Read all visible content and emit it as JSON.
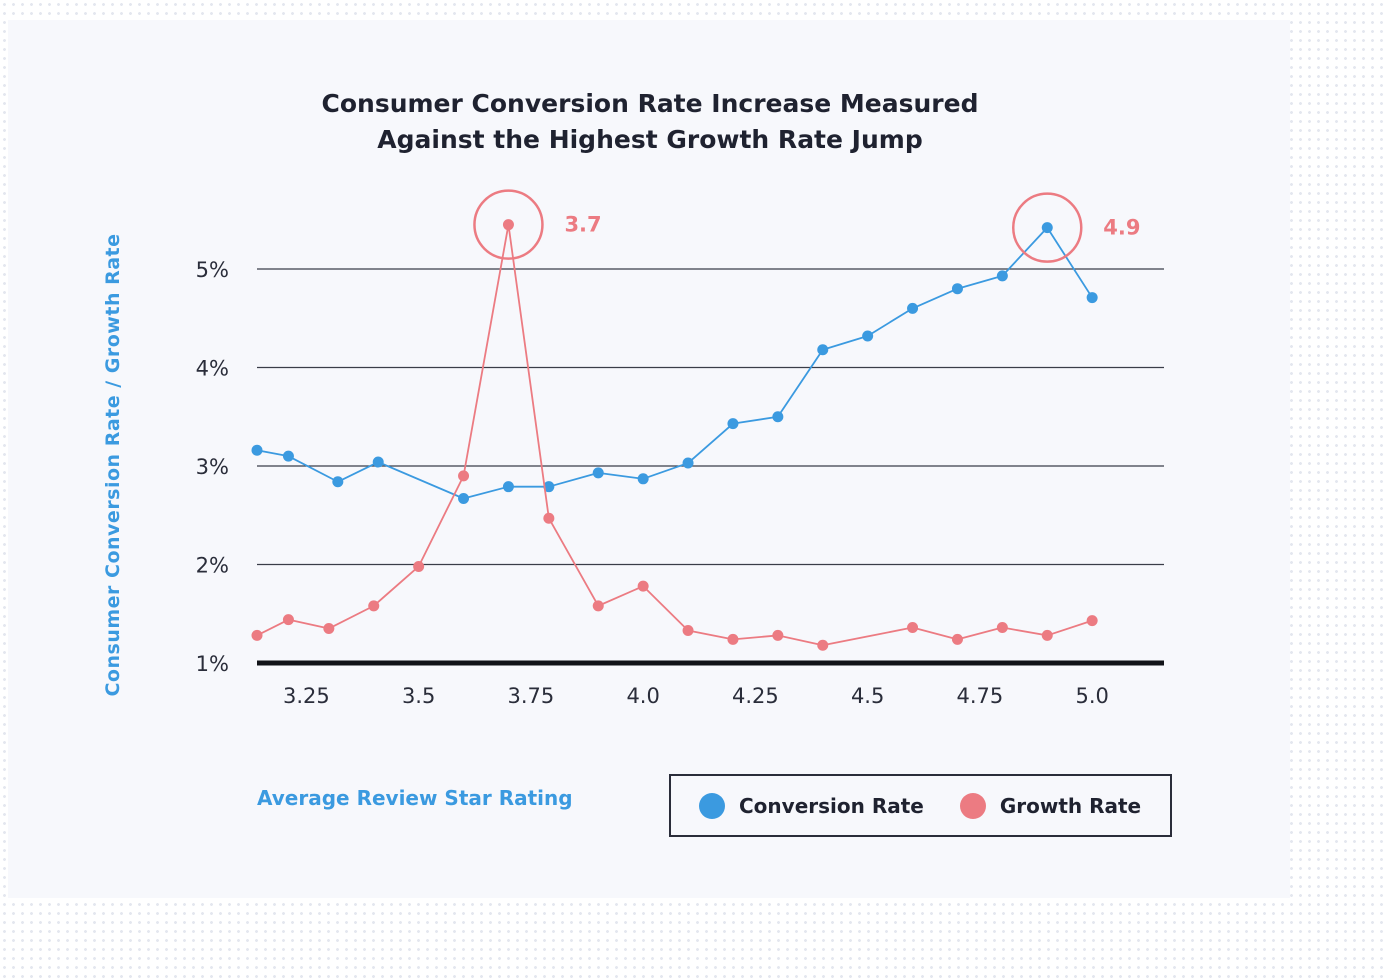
{
  "chart_data": {
    "type": "line",
    "title": [
      "Consumer Conversion Rate Increase Measured",
      "Against the Highest Growth Rate Jump"
    ],
    "xlabel": "Average Review Star Rating",
    "ylabel": "Consumer Conversion Rate / Growth Rate",
    "ylim": [
      1,
      5.4
    ],
    "xlim": [
      3.14,
      5.16
    ],
    "y_ticks": [
      {
        "value": 5,
        "label": "5%"
      },
      {
        "value": 4,
        "label": "4%"
      },
      {
        "value": 3,
        "label": "3%"
      },
      {
        "value": 2,
        "label": "2%"
      },
      {
        "value": 1,
        "label": "1%"
      }
    ],
    "x_ticks": [
      {
        "value": 3.25,
        "label": "3.25"
      },
      {
        "value": 3.5,
        "label": "3.5"
      },
      {
        "value": 3.75,
        "label": "3.75"
      },
      {
        "value": 4.0,
        "label": "4.0"
      },
      {
        "value": 4.25,
        "label": "4.25"
      },
      {
        "value": 4.5,
        "label": "4.5"
      },
      {
        "value": 4.75,
        "label": "4.75"
      },
      {
        "value": 5.0,
        "label": "5.0"
      }
    ],
    "grid": true,
    "legend_position": "bottom-right",
    "series": [
      {
        "name": "Conversion Rate",
        "color": "#3b9ae0",
        "points": [
          [
            3.14,
            3.16
          ],
          [
            3.21,
            3.1
          ],
          [
            3.32,
            2.84
          ],
          [
            3.41,
            3.04
          ],
          [
            3.6,
            2.67
          ],
          [
            3.7,
            2.79
          ],
          [
            3.79,
            2.79
          ],
          [
            3.9,
            2.93
          ],
          [
            4.0,
            2.87
          ],
          [
            4.1,
            3.03
          ],
          [
            4.2,
            3.43
          ],
          [
            4.3,
            3.5
          ],
          [
            4.4,
            4.18
          ],
          [
            4.5,
            4.32
          ],
          [
            4.6,
            4.6
          ],
          [
            4.7,
            4.8
          ],
          [
            4.8,
            4.93
          ],
          [
            4.9,
            5.42
          ],
          [
            5.0,
            4.71
          ]
        ]
      },
      {
        "name": "Growth Rate",
        "color": "#ec7b82",
        "points": [
          [
            3.14,
            1.28
          ],
          [
            3.21,
            1.44
          ],
          [
            3.3,
            1.35
          ],
          [
            3.4,
            1.58
          ],
          [
            3.5,
            1.98
          ],
          [
            3.6,
            2.9
          ],
          [
            3.7,
            5.45
          ],
          [
            3.79,
            2.47
          ],
          [
            3.9,
            1.58
          ],
          [
            4.0,
            1.78
          ],
          [
            4.1,
            1.33
          ],
          [
            4.2,
            1.24
          ],
          [
            4.3,
            1.28
          ],
          [
            4.4,
            1.18
          ],
          [
            4.6,
            1.36
          ],
          [
            4.7,
            1.24
          ],
          [
            4.8,
            1.36
          ],
          [
            4.9,
            1.28
          ],
          [
            5.0,
            1.43
          ]
        ]
      }
    ],
    "annotations": [
      {
        "label": "3.7",
        "x": 3.7,
        "y": 5.45,
        "color": "#ec7b82"
      },
      {
        "label": "4.9",
        "x": 4.9,
        "y": 5.42,
        "color": "#ec7b82"
      }
    ]
  }
}
